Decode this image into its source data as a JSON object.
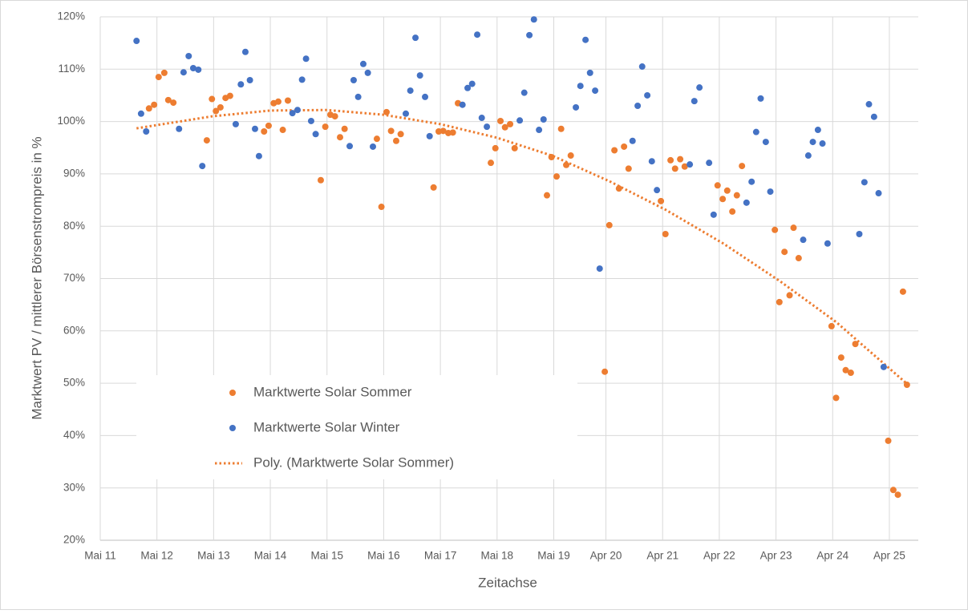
{
  "chart_data": {
    "type": "scatter",
    "xlabel": "Zeitachse",
    "ylabel": "Marktwert PV / mittlerer Börsenstrompreis in %",
    "xlim": [
      2011.33,
      2025.76
    ],
    "ylim": [
      20,
      120
    ],
    "xticks": [
      {
        "value": 2011.33,
        "label": "Mai 11"
      },
      {
        "value": 2012.33,
        "label": "Mai 12"
      },
      {
        "value": 2013.33,
        "label": "Mai 13"
      },
      {
        "value": 2014.33,
        "label": "Mai 14"
      },
      {
        "value": 2015.33,
        "label": "Mai 15"
      },
      {
        "value": 2016.33,
        "label": "Mai 16"
      },
      {
        "value": 2017.33,
        "label": "Mai 17"
      },
      {
        "value": 2018.33,
        "label": "Mai 18"
      },
      {
        "value": 2019.33,
        "label": "Mai 19"
      },
      {
        "value": 2020.25,
        "label": "Apr 20"
      },
      {
        "value": 2021.25,
        "label": "Apr 21"
      },
      {
        "value": 2022.25,
        "label": "Apr 22"
      },
      {
        "value": 2023.25,
        "label": "Apr 23"
      },
      {
        "value": 2024.25,
        "label": "Apr 24"
      },
      {
        "value": 2025.25,
        "label": "Apr 25"
      }
    ],
    "yticks": [
      {
        "value": 20,
        "label": "20%"
      },
      {
        "value": 30,
        "label": "30%"
      },
      {
        "value": 40,
        "label": "40%"
      },
      {
        "value": 50,
        "label": "50%"
      },
      {
        "value": 60,
        "label": "60%"
      },
      {
        "value": 70,
        "label": "70%"
      },
      {
        "value": 80,
        "label": "80%"
      },
      {
        "value": 90,
        "label": "90%"
      },
      {
        "value": 100,
        "label": "100%"
      },
      {
        "value": 110,
        "label": "110%"
      },
      {
        "value": 120,
        "label": "120%"
      }
    ],
    "grid": true,
    "legend": "lower-left",
    "series": [
      {
        "name": "Marktwerte Solar Sommer",
        "color": "#ed7d31",
        "kind": "markers",
        "x": [
          2012.19,
          2012.28,
          2012.36,
          2012.46,
          2012.53,
          2012.62,
          2013.21,
          2013.3,
          2013.37,
          2013.45,
          2013.54,
          2013.62,
          2014.22,
          2014.3,
          2014.39,
          2014.47,
          2014.55,
          2014.64,
          2015.22,
          2015.3,
          2015.39,
          2015.47,
          2015.56,
          2015.64,
          2016.21,
          2016.29,
          2016.38,
          2016.46,
          2016.55,
          2016.63,
          2017.21,
          2017.3,
          2017.38,
          2017.47,
          2017.55,
          2017.64,
          2018.22,
          2018.3,
          2018.39,
          2018.47,
          2018.56,
          2018.64,
          2019.21,
          2019.29,
          2019.38,
          2019.46,
          2019.55,
          2019.63,
          2020.23,
          2020.31,
          2020.4,
          2020.48,
          2020.57,
          2020.65,
          2021.22,
          2021.3,
          2021.39,
          2021.47,
          2021.56,
          2021.64,
          2022.22,
          2022.31,
          2022.39,
          2022.48,
          2022.56,
          2022.65,
          2023.23,
          2023.31,
          2023.4,
          2023.49,
          2023.56,
          2023.65,
          2024.23,
          2024.31,
          2024.4,
          2024.48,
          2024.57,
          2024.65,
          2025.23,
          2025.32,
          2025.4,
          2025.49,
          2025.56
        ],
        "values": [
          102.5,
          103.2,
          108.5,
          109.3,
          104.1,
          103.6,
          96.4,
          104.3,
          102,
          102.7,
          104.5,
          104.9,
          98.1,
          99.2,
          103.5,
          103.8,
          98.4,
          104,
          88.8,
          99,
          101.3,
          101,
          97,
          98.6,
          96.7,
          83.7,
          101.8,
          98.2,
          96.3,
          97.6,
          87.4,
          98.1,
          98.2,
          97.8,
          97.9,
          103.5,
          92.1,
          94.9,
          100.1,
          98.9,
          99.5,
          94.9,
          85.9,
          93.2,
          89.5,
          98.6,
          91.7,
          93.5,
          52.2,
          80.2,
          94.5,
          87.2,
          95.2,
          91,
          84.8,
          78.5,
          92.6,
          91,
          92.8,
          91.4,
          87.8,
          85.2,
          86.8,
          82.8,
          85.9,
          91.5,
          79.3,
          65.5,
          75.1,
          66.8,
          79.7,
          73.9,
          60.9,
          47.2,
          54.9,
          52.5,
          52,
          57.5,
          39,
          29.6,
          28.7,
          67.5,
          49.7
        ]
      },
      {
        "name": "Marktwerte Solar Winter",
        "color": "#4472c4",
        "kind": "markers",
        "x": [
          2011.97,
          2012.05,
          2012.14,
          2012.72,
          2012.8,
          2012.89,
          2012.97,
          2013.06,
          2013.13,
          2013.72,
          2013.81,
          2013.89,
          2013.97,
          2014.06,
          2014.13,
          2014.72,
          2014.81,
          2014.89,
          2014.96,
          2015.05,
          2015.13,
          2015.73,
          2015.8,
          2015.88,
          2015.97,
          2016.05,
          2016.14,
          2016.72,
          2016.8,
          2016.89,
          2016.97,
          2017.06,
          2017.14,
          2017.72,
          2017.81,
          2017.89,
          2017.98,
          2018.06,
          2018.15,
          2018.73,
          2018.81,
          2018.9,
          2018.98,
          2019.07,
          2019.15,
          2019.72,
          2019.8,
          2019.89,
          2019.97,
          2020.06,
          2020.14,
          2020.72,
          2020.81,
          2020.89,
          2020.98,
          2021.06,
          2021.15,
          2021.73,
          2021.81,
          2021.9,
          2022.07,
          2022.15,
          2022.73,
          2022.82,
          2022.9,
          2022.98,
          2023.07,
          2023.15,
          2023.73,
          2023.82,
          2023.9,
          2023.99,
          2024.07,
          2024.16,
          2024.72,
          2024.81,
          2024.89,
          2024.98,
          2025.06,
          2025.15
        ],
        "values": [
          115.4,
          101.5,
          98.1,
          98.6,
          109.4,
          112.5,
          110.2,
          109.9,
          91.5,
          99.5,
          107.1,
          113.3,
          107.9,
          98.6,
          93.4,
          101.6,
          102.2,
          108,
          112,
          100.1,
          97.6,
          95.3,
          107.9,
          104.7,
          111,
          109.3,
          95.2,
          101.5,
          105.9,
          116,
          108.8,
          104.7,
          97.2,
          103.2,
          106.4,
          107.2,
          116.6,
          100.7,
          99,
          100.2,
          105.5,
          116.5,
          119.5,
          98.4,
          100.4,
          102.7,
          106.8,
          115.6,
          109.3,
          105.9,
          71.9,
          96.3,
          103,
          110.5,
          105,
          92.4,
          86.9,
          91.8,
          103.9,
          106.5,
          92.1,
          82.2,
          84.5,
          88.5,
          98,
          104.4,
          96.1,
          86.6,
          77.4,
          93.5,
          96.1,
          98.4,
          95.8,
          76.7,
          78.5,
          88.4,
          103.3,
          100.9,
          86.3,
          53.1
        ]
      },
      {
        "name": "Poly. (Marktwerte Solar Sommer)",
        "color": "#ed7d31",
        "kind": "trendline",
        "dash": "dotted",
        "x": [
          2011.97,
          2013.31,
          2014.33,
          2015.33,
          2016.32,
          2017.33,
          2018.33,
          2019.32,
          2020.31,
          2021.31,
          2022.32,
          2023.32,
          2024.31,
          2025.56
        ],
        "values": [
          98.7,
          101,
          102.1,
          102.2,
          101.3,
          99.5,
          96.9,
          93.4,
          88.6,
          83.1,
          76.7,
          69.5,
          61.7,
          49.9
        ]
      }
    ]
  }
}
